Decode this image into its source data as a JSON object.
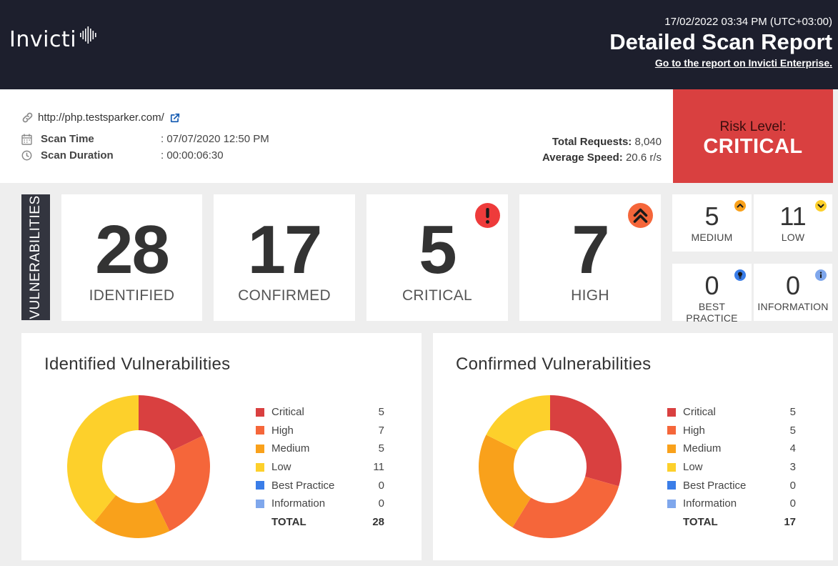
{
  "header": {
    "logo_text": "Invicti",
    "datetime": "17/02/2022 03:34 PM (UTC+03:00)",
    "title": "Detailed Scan Report",
    "enterprise_link": "Go to the report on Invicti Enterprise."
  },
  "scan": {
    "url": "http://php.testsparker.com/",
    "scan_time_label": "Scan Time",
    "scan_time_value": ": 07/07/2020 12:50 PM",
    "scan_duration_label": "Scan Duration",
    "scan_duration_value": ": 00:00:06:30",
    "total_requests_label": "Total Requests:",
    "total_requests_value": "8,040",
    "average_speed_label": "Average Speed:",
    "average_speed_value": "20.6 r/s"
  },
  "risk": {
    "label": "Risk Level:",
    "value": "CRITICAL"
  },
  "vulnerabilities": {
    "tab_label": "VULNERABILITIES",
    "identified": {
      "count": "28",
      "label": "IDENTIFIED"
    },
    "confirmed": {
      "count": "17",
      "label": "CONFIRMED"
    },
    "critical": {
      "count": "5",
      "label": "CRITICAL"
    },
    "high": {
      "count": "7",
      "label": "HIGH"
    },
    "medium": {
      "count": "5",
      "label": "MEDIUM"
    },
    "low": {
      "count": "11",
      "label": "LOW"
    },
    "best_practice": {
      "count": "0",
      "label": "BEST PRACTICE"
    },
    "information": {
      "count": "0",
      "label": "INFORMATION"
    }
  },
  "colors": {
    "critical": "#d94040",
    "high": "#f5663a",
    "medium": "#f9a11b",
    "low": "#fdd02b",
    "best_practice": "#3a7de8",
    "information": "#7fa7ec",
    "risk_bg": "#d94040",
    "header_bg": "#1d1f2d"
  },
  "icons": {
    "link": "link-icon",
    "external": "external-link-icon",
    "calendar": "calendar-icon",
    "clock": "clock-icon",
    "critical_badge": "exclamation-icon",
    "high_badge": "double-chevron-up-icon",
    "medium_badge": "chevron-up-icon",
    "low_badge": "chevron-down-icon",
    "best_practice_badge": "lightbulb-icon",
    "information_badge": "info-icon"
  },
  "chart_data": [
    {
      "type": "pie",
      "title": "Identified Vulnerabilities",
      "categories": [
        "Critical",
        "High",
        "Medium",
        "Low",
        "Best Practice",
        "Information"
      ],
      "values": [
        5,
        7,
        5,
        11,
        0,
        0
      ],
      "total_label": "TOTAL",
      "total": 28
    },
    {
      "type": "pie",
      "title": "Confirmed Vulnerabilities",
      "categories": [
        "Critical",
        "High",
        "Medium",
        "Low",
        "Best Practice",
        "Information"
      ],
      "values": [
        5,
        5,
        4,
        3,
        0,
        0
      ],
      "total_label": "TOTAL",
      "total": 17
    }
  ]
}
